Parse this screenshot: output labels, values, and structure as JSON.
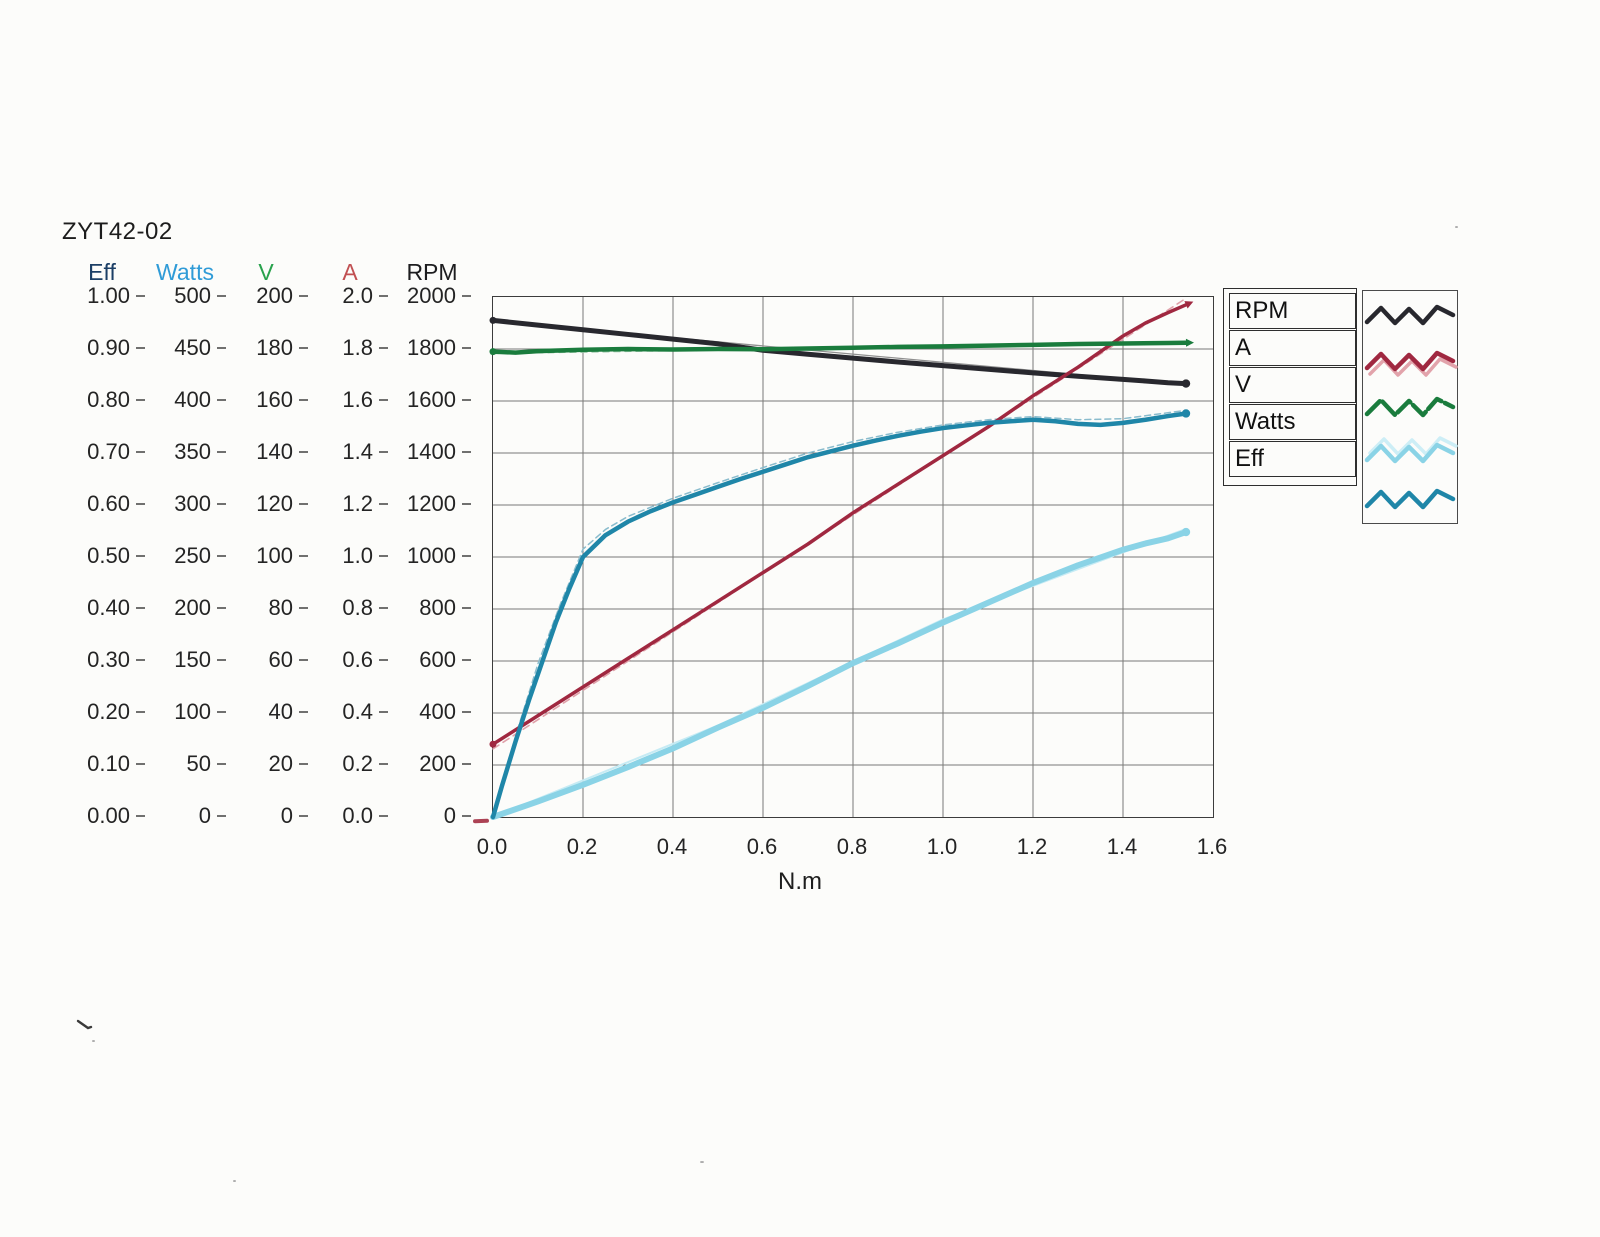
{
  "page": {
    "title": "ZYT42-02"
  },
  "axes": {
    "y_columns": [
      {
        "name": "Eff",
        "color": "#1c3f66",
        "labels": [
          "1.00",
          "0.90",
          "0.80",
          "0.70",
          "0.60",
          "0.50",
          "0.40",
          "0.30",
          "0.20",
          "0.10",
          "0.00"
        ]
      },
      {
        "name": "Watts",
        "color": "#2f9bd7",
        "labels": [
          "500",
          "450",
          "400",
          "350",
          "300",
          "250",
          "200",
          "150",
          "100",
          "50",
          "0"
        ]
      },
      {
        "name": "V",
        "color": "#28a24c",
        "labels": [
          "200",
          "180",
          "160",
          "140",
          "120",
          "100",
          "80",
          "60",
          "40",
          "20",
          "0"
        ]
      },
      {
        "name": "A",
        "color": "#c15052",
        "labels": [
          "2.0",
          "1.8",
          "1.6",
          "1.4",
          "1.2",
          "1.0",
          "0.8",
          "0.6",
          "0.4",
          "0.2",
          "0.0"
        ]
      },
      {
        "name": "RPM",
        "color": "#1d1d1f",
        "labels": [
          "2000",
          "1800",
          "1600",
          "1400",
          "1200",
          "1000",
          "800",
          "600",
          "400",
          "200",
          "0"
        ]
      }
    ],
    "x": {
      "labels": [
        "0.0",
        "0.2",
        "0.4",
        "0.6",
        "0.8",
        "1.0",
        "1.2",
        "1.4",
        "1.6"
      ],
      "title": "N.m"
    }
  },
  "legend": {
    "entries": [
      {
        "label": "RPM",
        "color": "#28282e"
      },
      {
        "label": "A",
        "color": "#a02840",
        "echo": "#e2a3ab",
        "echo_dy": 6
      },
      {
        "label": "V",
        "color": "#1a7c3d",
        "dash": "18 4"
      },
      {
        "label": "Watts",
        "color": "#8ad3e6",
        "echo": "#cdeef6",
        "echo_dy": -7
      },
      {
        "label": "Eff",
        "color": "#1f86a8"
      }
    ]
  },
  "chart_data": {
    "type": "line",
    "title": "ZYT42-02",
    "xlabel": "N.m",
    "xlim": [
      0,
      1.6
    ],
    "x_tick_step": 0.2,
    "grid": true,
    "legend_position": "right",
    "series": [
      {
        "name": "RPM",
        "axis_max": 2000,
        "color": "#28282e",
        "width": 5,
        "start_marker": true,
        "end_marker": "dot",
        "points": [
          [
            0,
            1910
          ],
          [
            0.1,
            1892
          ],
          [
            0.2,
            1874
          ],
          [
            0.3,
            1856
          ],
          [
            0.4,
            1838
          ],
          [
            0.5,
            1820
          ],
          [
            0.6,
            1795
          ],
          [
            0.7,
            1780
          ],
          [
            0.8,
            1765
          ],
          [
            0.9,
            1750
          ],
          [
            1.0,
            1736
          ],
          [
            1.1,
            1722
          ],
          [
            1.2,
            1708
          ],
          [
            1.3,
            1695
          ],
          [
            1.4,
            1683
          ],
          [
            1.45,
            1677
          ],
          [
            1.5,
            1670
          ],
          [
            1.54,
            1667
          ]
        ],
        "trend": {
          "color": "#909090",
          "width": 1.3,
          "points": [
            [
              0,
              1906
            ],
            [
              1.54,
              1664
            ]
          ]
        }
      },
      {
        "name": "A",
        "axis_max": 2.0,
        "color": "#a02840",
        "width": 3.5,
        "start_marker": true,
        "end_marker": "arrow",
        "points": [
          [
            0,
            0.28
          ],
          [
            0.1,
            0.39
          ],
          [
            0.2,
            0.5
          ],
          [
            0.3,
            0.61
          ],
          [
            0.4,
            0.72
          ],
          [
            0.5,
            0.83
          ],
          [
            0.6,
            0.94
          ],
          [
            0.7,
            1.05
          ],
          [
            0.8,
            1.17
          ],
          [
            0.9,
            1.28
          ],
          [
            1.0,
            1.39
          ],
          [
            1.1,
            1.5
          ],
          [
            1.2,
            1.62
          ],
          [
            1.3,
            1.73
          ],
          [
            1.4,
            1.85
          ],
          [
            1.45,
            1.9
          ],
          [
            1.5,
            1.94
          ],
          [
            1.54,
            1.97
          ]
        ],
        "trend": {
          "color": "#e0a1aa",
          "width": 1.6,
          "dash": "7 5",
          "points": [
            [
              0,
              0.262
            ],
            [
              1.54,
              1.995
            ]
          ]
        }
      },
      {
        "name": "V",
        "axis_max": 200,
        "color": "#1a7c3d",
        "width": 4.5,
        "start_marker": true,
        "end_marker": "arrow",
        "points": [
          [
            0,
            179
          ],
          [
            0.05,
            178.6
          ],
          [
            0.1,
            179.2
          ],
          [
            0.2,
            179.7
          ],
          [
            0.3,
            180.0
          ],
          [
            0.4,
            179.8
          ],
          [
            0.5,
            180.0
          ],
          [
            0.6,
            179.9
          ],
          [
            0.7,
            180.2
          ],
          [
            0.8,
            180.5
          ],
          [
            0.9,
            180.8
          ],
          [
            1.0,
            181.0
          ],
          [
            1.1,
            181.3
          ],
          [
            1.2,
            181.6
          ],
          [
            1.3,
            181.9
          ],
          [
            1.4,
            182.1
          ],
          [
            1.5,
            182.3
          ],
          [
            1.54,
            182.4
          ]
        ],
        "trend": {
          "color": "#93c2a2",
          "width": 1.5,
          "dash": "6 5",
          "points": [
            [
              0,
              178.3
            ],
            [
              0.6,
              179.9
            ],
            [
              1.1,
              181.2
            ],
            [
              1.54,
              182.8
            ]
          ]
        }
      },
      {
        "name": "Watts",
        "axis_max": 500,
        "color": "#8ad3e6",
        "width": 6,
        "start_marker": false,
        "end_marker": "dot",
        "points": [
          [
            0,
            0
          ],
          [
            0.1,
            15
          ],
          [
            0.2,
            31
          ],
          [
            0.3,
            48
          ],
          [
            0.4,
            66
          ],
          [
            0.5,
            86
          ],
          [
            0.6,
            105
          ],
          [
            0.7,
            126
          ],
          [
            0.8,
            148
          ],
          [
            0.9,
            167
          ],
          [
            1.0,
            187
          ],
          [
            1.1,
            206
          ],
          [
            1.2,
            225
          ],
          [
            1.3,
            242
          ],
          [
            1.4,
            257
          ],
          [
            1.45,
            263
          ],
          [
            1.5,
            268
          ],
          [
            1.54,
            274
          ]
        ],
        "trend": {
          "color": "#c6ebf4",
          "width": 2,
          "points": [
            [
              0,
              0
            ],
            [
              0.5,
              88
            ],
            [
              1.0,
              190
            ],
            [
              1.54,
              277
            ]
          ]
        }
      },
      {
        "name": "Eff",
        "axis_max": 1.0,
        "color": "#1f86a8",
        "width": 4.5,
        "start_marker": false,
        "end_marker": "dot",
        "points": [
          [
            0,
            0
          ],
          [
            0.02,
            0.06
          ],
          [
            0.05,
            0.145
          ],
          [
            0.08,
            0.225
          ],
          [
            0.11,
            0.3
          ],
          [
            0.14,
            0.375
          ],
          [
            0.17,
            0.44
          ],
          [
            0.2,
            0.5
          ],
          [
            0.25,
            0.542
          ],
          [
            0.3,
            0.568
          ],
          [
            0.35,
            0.588
          ],
          [
            0.4,
            0.605
          ],
          [
            0.45,
            0.62
          ],
          [
            0.5,
            0.635
          ],
          [
            0.55,
            0.65
          ],
          [
            0.6,
            0.664
          ],
          [
            0.65,
            0.678
          ],
          [
            0.7,
            0.692
          ],
          [
            0.75,
            0.703
          ],
          [
            0.8,
            0.714
          ],
          [
            0.85,
            0.724
          ],
          [
            0.9,
            0.733
          ],
          [
            0.95,
            0.741
          ],
          [
            1.0,
            0.748
          ],
          [
            1.05,
            0.753
          ],
          [
            1.1,
            0.758
          ],
          [
            1.15,
            0.761
          ],
          [
            1.2,
            0.764
          ],
          [
            1.25,
            0.761
          ],
          [
            1.3,
            0.756
          ],
          [
            1.35,
            0.754
          ],
          [
            1.4,
            0.758
          ],
          [
            1.45,
            0.764
          ],
          [
            1.5,
            0.771
          ],
          [
            1.54,
            0.776
          ]
        ],
        "trend": {
          "color": "#8abccd",
          "width": 1.5,
          "dash": "6 4",
          "points": [
            [
              0,
              0
            ],
            [
              0.05,
              0.155
            ],
            [
              0.1,
              0.295
            ],
            [
              0.15,
              0.41
            ],
            [
              0.2,
              0.515
            ],
            [
              0.25,
              0.553
            ],
            [
              0.3,
              0.578
            ],
            [
              0.4,
              0.613
            ],
            [
              0.5,
              0.643
            ],
            [
              0.6,
              0.672
            ],
            [
              0.7,
              0.7
            ],
            [
              0.8,
              0.722
            ],
            [
              0.9,
              0.74
            ],
            [
              1.0,
              0.754
            ],
            [
              1.1,
              0.764
            ],
            [
              1.2,
              0.77
            ],
            [
              1.3,
              0.764
            ],
            [
              1.4,
              0.766
            ],
            [
              1.54,
              0.782
            ]
          ]
        }
      }
    ]
  }
}
